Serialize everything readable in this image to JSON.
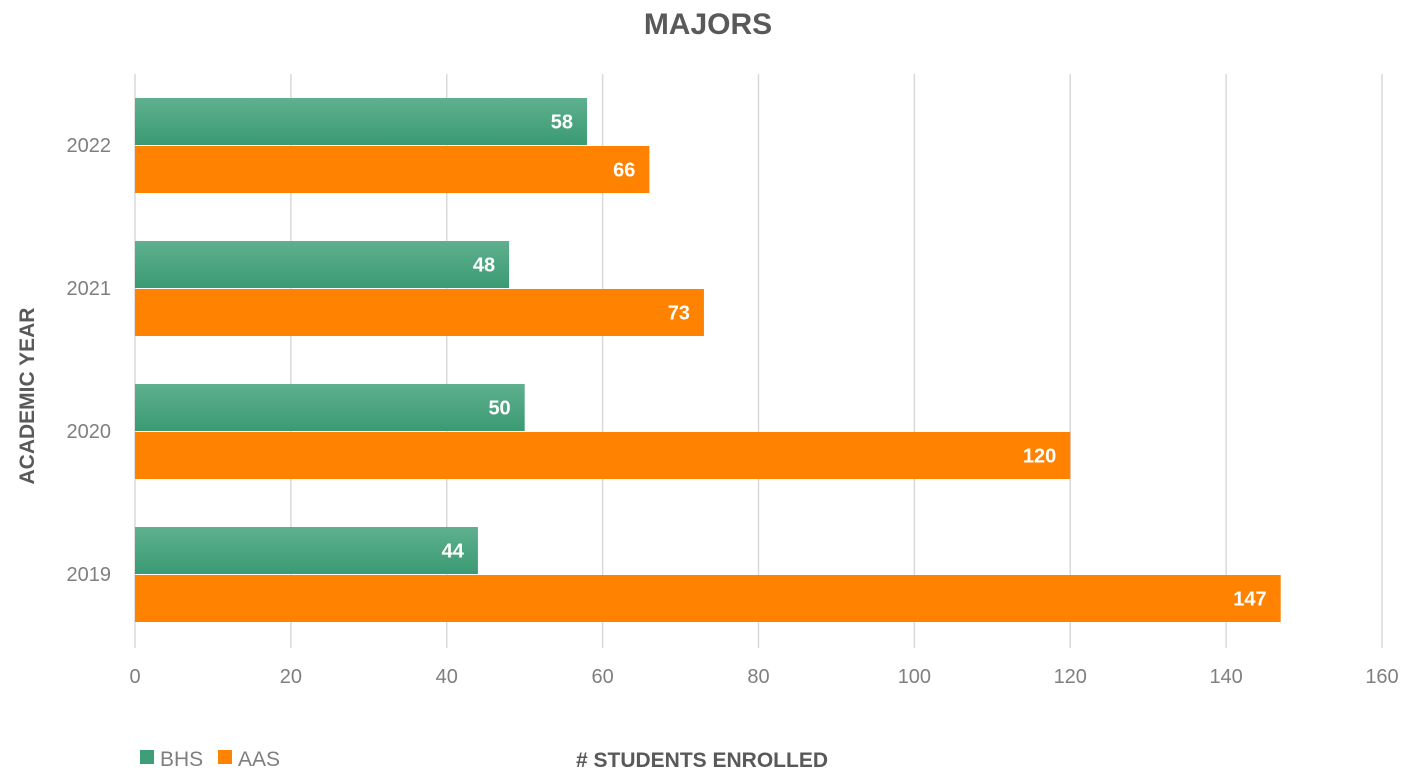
{
  "chart_data": {
    "type": "bar",
    "orientation": "horizontal",
    "title": "MAJORS",
    "xlabel": "# STUDENTS ENROLLED",
    "ylabel": "ACADEMIC YEAR",
    "categories": [
      "2022",
      "2021",
      "2020",
      "2019"
    ],
    "series": [
      {
        "name": "BHS",
        "values": [
          58,
          48,
          50,
          44
        ],
        "color": "#3e9e78"
      },
      {
        "name": "AAS",
        "values": [
          66,
          73,
          120,
          147
        ],
        "color": "#ff8200"
      }
    ],
    "xlim": [
      0,
      160
    ],
    "xticks": [
      0,
      20,
      40,
      60,
      80,
      100,
      120,
      140,
      160
    ],
    "grid": "vertical",
    "legend": "bottom-left",
    "data_labels": true
  }
}
